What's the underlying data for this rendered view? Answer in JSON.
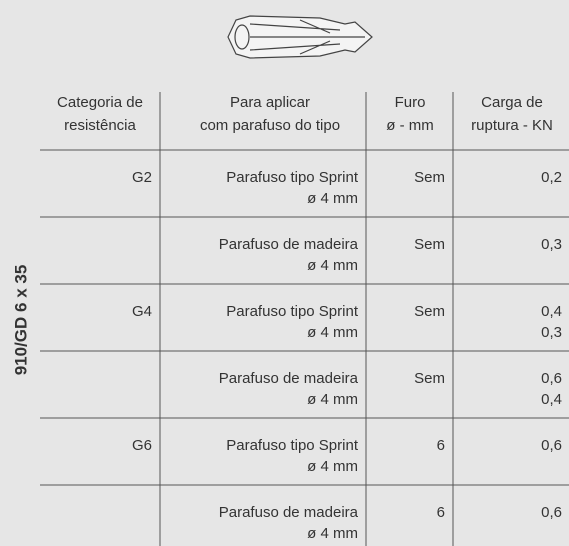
{
  "side_label": "910/GD 6 x 35",
  "table": {
    "header": [
      [
        "Categoria de",
        "resistência"
      ],
      [
        "Para aplicar",
        "com parafuso do tipo"
      ],
      [
        "Furo",
        "ø - mm"
      ],
      [
        "Carga de",
        "ruptura - KN"
      ]
    ],
    "rows": [
      {
        "category": "G2",
        "screw": [
          "Parafuso tipo Sprint",
          "ø 4 mm"
        ],
        "hole": "Sem",
        "load": [
          "0,2"
        ]
      },
      {
        "screw": [
          "Parafuso de madeira",
          "ø 4 mm"
        ],
        "hole": "Sem",
        "load": [
          "0,3"
        ]
      },
      {
        "category": "G4",
        "screw": [
          "Parafuso tipo Sprint",
          "ø 4 mm"
        ],
        "hole": "Sem",
        "load": [
          "0,4",
          "0,3"
        ]
      },
      {
        "screw": [
          "Parafuso de madeira",
          "ø 4 mm"
        ],
        "hole": "Sem",
        "load": [
          "0,6",
          "0,4"
        ]
      },
      {
        "category": "G6",
        "screw": [
          "Parafuso tipo Sprint",
          "ø 4 mm"
        ],
        "hole": "6",
        "load": [
          "0,6"
        ]
      },
      {
        "screw": [
          "Parafuso de madeira",
          "ø 4 mm"
        ],
        "hole": "6",
        "load": [
          "0,6"
        ]
      }
    ]
  }
}
